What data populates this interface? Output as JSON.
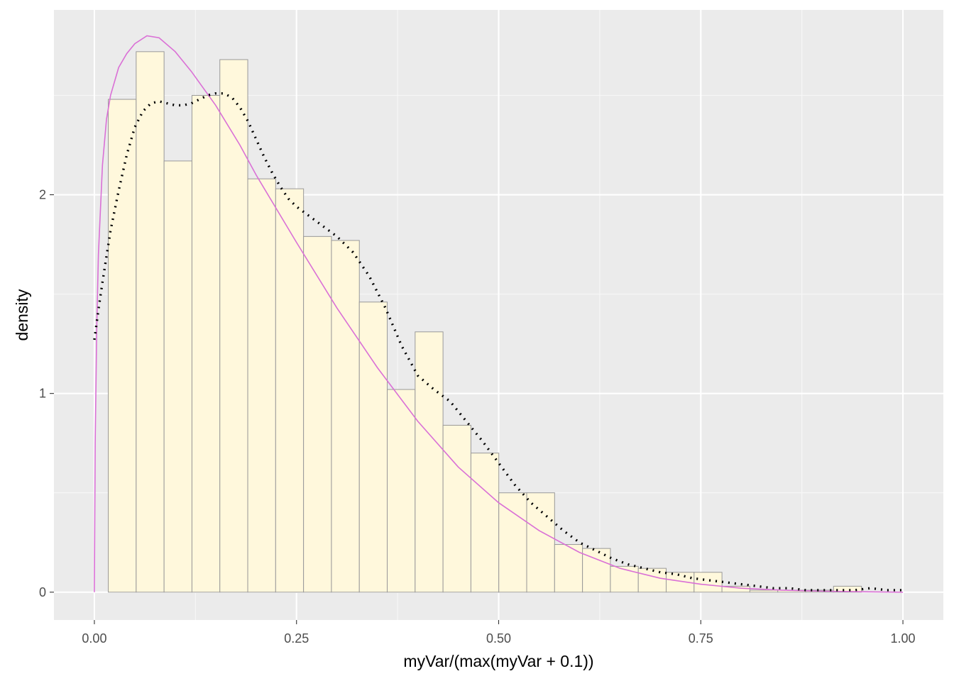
{
  "chart_data": {
    "type": "bar",
    "subtype": "histogram-with-density-curves",
    "title": "",
    "xlabel": "myVar/(max(myVar + 0.1))",
    "ylabel": "density",
    "xlim": [
      -0.05,
      1.05
    ],
    "ylim": [
      -0.14,
      2.93
    ],
    "grid": true,
    "legend": "none",
    "colors": {
      "panel_background": "#ebebeb",
      "grid_major": "#ffffff",
      "grid_minor": "#f7f7f7",
      "bar_fill": "#fff8dc",
      "bar_stroke": "#999999",
      "theoretical_curve": "#da70d6",
      "kde_curve": "#000000"
    },
    "x_ticks": [
      {
        "value": 0.0,
        "label": "0.00"
      },
      {
        "value": 0.25,
        "label": "0.25"
      },
      {
        "value": 0.5,
        "label": "0.50"
      },
      {
        "value": 0.75,
        "label": "0.75"
      },
      {
        "value": 1.0,
        "label": "1.00"
      }
    ],
    "y_ticks": [
      {
        "value": 0,
        "label": "0"
      },
      {
        "value": 1,
        "label": "1"
      },
      {
        "value": 2,
        "label": "2"
      }
    ],
    "bin_edges": [
      0.0172,
      0.0517,
      0.0862,
      0.1207,
      0.1552,
      0.1897,
      0.2242,
      0.2587,
      0.2932,
      0.3277,
      0.3622,
      0.3967,
      0.4312,
      0.4657,
      0.5002,
      0.5347,
      0.5692,
      0.6037,
      0.6382,
      0.6727,
      0.7072,
      0.7417,
      0.7762,
      0.8107,
      0.8452,
      0.8797,
      0.9142,
      0.9487,
      0.9832
    ],
    "bins": [
      2.48,
      2.72,
      2.17,
      2.5,
      2.68,
      2.08,
      2.03,
      1.79,
      1.77,
      1.46,
      1.02,
      1.31,
      0.84,
      0.7,
      0.5,
      0.5,
      0.24,
      0.22,
      0.13,
      0.12,
      0.1,
      0.1,
      0.03,
      0.01,
      0.01,
      0.01,
      0.03,
      0.0
    ],
    "series": [
      {
        "style": "solid",
        "x": [
          0.0,
          0.001,
          0.003,
          0.005,
          0.01,
          0.015,
          0.02,
          0.03,
          0.04,
          0.05,
          0.065,
          0.08,
          0.1,
          0.12,
          0.15,
          0.18,
          0.2,
          0.25,
          0.3,
          0.35,
          0.4,
          0.45,
          0.5,
          0.55,
          0.6,
          0.65,
          0.7,
          0.75,
          0.8,
          0.85,
          0.9,
          0.95,
          1.0
        ],
        "values": [
          0.0,
          0.75,
          1.35,
          1.7,
          2.15,
          2.38,
          2.5,
          2.64,
          2.71,
          2.76,
          2.8,
          2.79,
          2.72,
          2.62,
          2.45,
          2.25,
          2.1,
          1.76,
          1.43,
          1.13,
          0.86,
          0.63,
          0.45,
          0.31,
          0.2,
          0.12,
          0.07,
          0.04,
          0.02,
          0.01,
          0.005,
          0.002,
          0.0
        ]
      },
      {
        "style": "dotted",
        "x": [
          0.0,
          0.005,
          0.01,
          0.02,
          0.03,
          0.04,
          0.05,
          0.06,
          0.07,
          0.08,
          0.09,
          0.1,
          0.11,
          0.12,
          0.13,
          0.14,
          0.15,
          0.16,
          0.17,
          0.18,
          0.19,
          0.2,
          0.21,
          0.22,
          0.23,
          0.24,
          0.25,
          0.26,
          0.27,
          0.28,
          0.29,
          0.3,
          0.32,
          0.34,
          0.36,
          0.38,
          0.4,
          0.42,
          0.44,
          0.46,
          0.48,
          0.5,
          0.52,
          0.54,
          0.56,
          0.58,
          0.6,
          0.62,
          0.64,
          0.66,
          0.68,
          0.7,
          0.72,
          0.74,
          0.76,
          0.78,
          0.8,
          0.82,
          0.84,
          0.86,
          0.88,
          0.9,
          0.92,
          0.94,
          0.96,
          0.98,
          1.0
        ],
        "values": [
          1.27,
          1.42,
          1.56,
          1.82,
          2.02,
          2.2,
          2.34,
          2.42,
          2.46,
          2.47,
          2.46,
          2.45,
          2.45,
          2.46,
          2.48,
          2.5,
          2.51,
          2.51,
          2.49,
          2.44,
          2.37,
          2.28,
          2.19,
          2.11,
          2.04,
          1.98,
          1.94,
          1.91,
          1.88,
          1.85,
          1.82,
          1.79,
          1.71,
          1.59,
          1.43,
          1.24,
          1.09,
          1.02,
          0.96,
          0.86,
          0.76,
          0.65,
          0.54,
          0.45,
          0.38,
          0.31,
          0.25,
          0.21,
          0.17,
          0.14,
          0.12,
          0.1,
          0.09,
          0.07,
          0.06,
          0.05,
          0.04,
          0.03,
          0.02,
          0.02,
          0.01,
          0.01,
          0.01,
          0.01,
          0.02,
          0.01,
          0.01
        ]
      }
    ]
  }
}
